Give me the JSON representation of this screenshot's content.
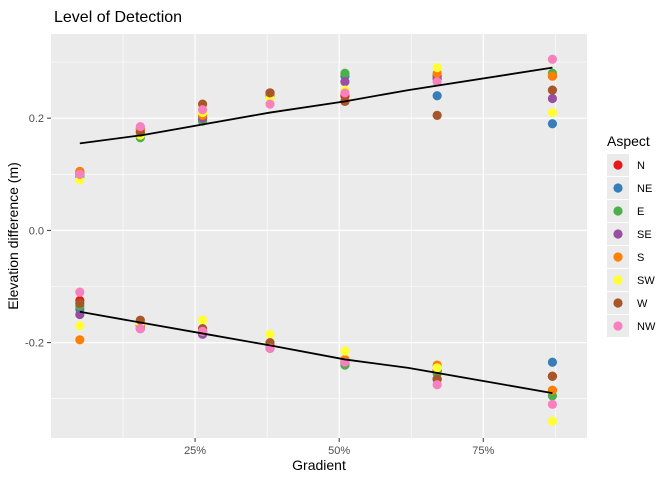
{
  "chart_data": {
    "type": "scatter",
    "title": "Level of Detection",
    "xlabel": "Gradient",
    "ylabel": "Elevation difference (m)",
    "xlim": [
      0.0,
      0.93
    ],
    "ylim": [
      -0.37,
      0.35
    ],
    "x_ticks": [
      {
        "value": 0.25,
        "label": "25%"
      },
      {
        "value": 0.5,
        "label": "50%"
      },
      {
        "value": 0.75,
        "label": "75%"
      }
    ],
    "x_minor_ticks": [
      0.125,
      0.375,
      0.625,
      0.875
    ],
    "y_ticks": [
      {
        "value": -0.2,
        "label": "-0.2"
      },
      {
        "value": 0.0,
        "label": "0.0"
      },
      {
        "value": 0.2,
        "label": "0.2"
      }
    ],
    "y_minor_ticks": [
      -0.3,
      -0.1,
      0.1,
      0.3
    ],
    "grid": true,
    "legend": {
      "title": "Aspect",
      "position": "right"
    },
    "series": [
      {
        "name": "N",
        "color": "#E41A1C",
        "points": [
          [
            0.05,
            0.105
          ],
          [
            0.05,
            -0.125
          ],
          [
            0.155,
            0.18
          ],
          [
            0.155,
            -0.17
          ],
          [
            0.263,
            0.2
          ],
          [
            0.263,
            -0.18
          ],
          [
            0.38,
            0.245
          ],
          [
            0.38,
            -0.205
          ],
          [
            0.51,
            0.24
          ],
          [
            0.51,
            -0.235
          ],
          [
            0.67,
            0.27
          ],
          [
            0.67,
            -0.25
          ],
          [
            0.87,
            0.275
          ],
          [
            0.87,
            -0.26
          ]
        ]
      },
      {
        "name": "NE",
        "color": "#377EB8",
        "points": [
          [
            0.05,
            0.1
          ],
          [
            0.05,
            -0.14
          ],
          [
            0.155,
            0.17
          ],
          [
            0.155,
            -0.175
          ],
          [
            0.263,
            0.195
          ],
          [
            0.263,
            -0.185
          ],
          [
            0.38,
            0.245
          ],
          [
            0.38,
            -0.21
          ],
          [
            0.51,
            0.275
          ],
          [
            0.51,
            -0.24
          ],
          [
            0.67,
            0.24
          ],
          [
            0.67,
            -0.265
          ],
          [
            0.87,
            0.19
          ],
          [
            0.87,
            -0.235
          ]
        ]
      },
      {
        "name": "E",
        "color": "#4DAF4A",
        "points": [
          [
            0.05,
            0.095
          ],
          [
            0.05,
            -0.135
          ],
          [
            0.155,
            0.165
          ],
          [
            0.155,
            -0.17
          ],
          [
            0.263,
            0.195
          ],
          [
            0.263,
            -0.18
          ],
          [
            0.38,
            0.24
          ],
          [
            0.38,
            -0.205
          ],
          [
            0.51,
            0.28
          ],
          [
            0.51,
            -0.24
          ],
          [
            0.67,
            0.275
          ],
          [
            0.67,
            -0.255
          ],
          [
            0.87,
            0.28
          ],
          [
            0.87,
            -0.295
          ]
        ]
      },
      {
        "name": "SE",
        "color": "#984EA3",
        "points": [
          [
            0.05,
            0.1
          ],
          [
            0.05,
            -0.15
          ],
          [
            0.155,
            0.175
          ],
          [
            0.155,
            -0.175
          ],
          [
            0.263,
            0.2
          ],
          [
            0.263,
            -0.185
          ],
          [
            0.38,
            0.24
          ],
          [
            0.38,
            -0.21
          ],
          [
            0.51,
            0.265
          ],
          [
            0.51,
            -0.235
          ],
          [
            0.67,
            0.275
          ],
          [
            0.67,
            -0.265
          ],
          [
            0.87,
            0.235
          ],
          [
            0.87,
            -0.285
          ]
        ]
      },
      {
        "name": "S",
        "color": "#FF7F00",
        "points": [
          [
            0.05,
            0.105
          ],
          [
            0.05,
            -0.195
          ],
          [
            0.155,
            0.18
          ],
          [
            0.155,
            -0.17
          ],
          [
            0.263,
            0.205
          ],
          [
            0.263,
            -0.18
          ],
          [
            0.38,
            0.24
          ],
          [
            0.38,
            -0.205
          ],
          [
            0.51,
            0.23
          ],
          [
            0.51,
            -0.23
          ],
          [
            0.67,
            0.28
          ],
          [
            0.67,
            -0.24
          ],
          [
            0.87,
            0.275
          ],
          [
            0.87,
            -0.285
          ]
        ]
      },
      {
        "name": "SW",
        "color": "#FFFF33",
        "points": [
          [
            0.05,
            0.09
          ],
          [
            0.05,
            -0.17
          ],
          [
            0.155,
            0.17
          ],
          [
            0.155,
            -0.165
          ],
          [
            0.263,
            0.21
          ],
          [
            0.263,
            -0.16
          ],
          [
            0.38,
            0.235
          ],
          [
            0.38,
            -0.185
          ],
          [
            0.51,
            0.25
          ],
          [
            0.51,
            -0.215
          ],
          [
            0.67,
            0.29
          ],
          [
            0.67,
            -0.245
          ],
          [
            0.87,
            0.21
          ],
          [
            0.87,
            -0.34
          ]
        ]
      },
      {
        "name": "W",
        "color": "#A65628",
        "points": [
          [
            0.05,
            0.1
          ],
          [
            0.05,
            -0.13
          ],
          [
            0.155,
            0.175
          ],
          [
            0.155,
            -0.16
          ],
          [
            0.263,
            0.225
          ],
          [
            0.263,
            -0.175
          ],
          [
            0.38,
            0.245
          ],
          [
            0.38,
            -0.2
          ],
          [
            0.51,
            0.23
          ],
          [
            0.51,
            -0.235
          ],
          [
            0.67,
            0.205
          ],
          [
            0.67,
            -0.265
          ],
          [
            0.87,
            0.25
          ],
          [
            0.87,
            -0.26
          ]
        ]
      },
      {
        "name": "NW",
        "color": "#F781BF",
        "points": [
          [
            0.05,
            0.1
          ],
          [
            0.05,
            -0.11
          ],
          [
            0.155,
            0.185
          ],
          [
            0.155,
            -0.175
          ],
          [
            0.263,
            0.215
          ],
          [
            0.263,
            -0.18
          ],
          [
            0.38,
            0.225
          ],
          [
            0.38,
            -0.21
          ],
          [
            0.51,
            0.245
          ],
          [
            0.51,
            -0.235
          ],
          [
            0.67,
            0.265
          ],
          [
            0.67,
            -0.275
          ],
          [
            0.87,
            0.305
          ],
          [
            0.87,
            -0.31
          ]
        ]
      }
    ],
    "trend_lines": [
      {
        "points": [
          [
            0.05,
            0.155
          ],
          [
            0.16,
            0.17
          ],
          [
            0.27,
            0.19
          ],
          [
            0.38,
            0.21
          ],
          [
            0.51,
            0.23
          ],
          [
            0.62,
            0.25
          ],
          [
            0.87,
            0.29
          ]
        ]
      },
      {
        "points": [
          [
            0.05,
            -0.145
          ],
          [
            0.16,
            -0.165
          ],
          [
            0.27,
            -0.185
          ],
          [
            0.38,
            -0.205
          ],
          [
            0.51,
            -0.23
          ],
          [
            0.62,
            -0.245
          ],
          [
            0.87,
            -0.29
          ]
        ]
      }
    ]
  }
}
